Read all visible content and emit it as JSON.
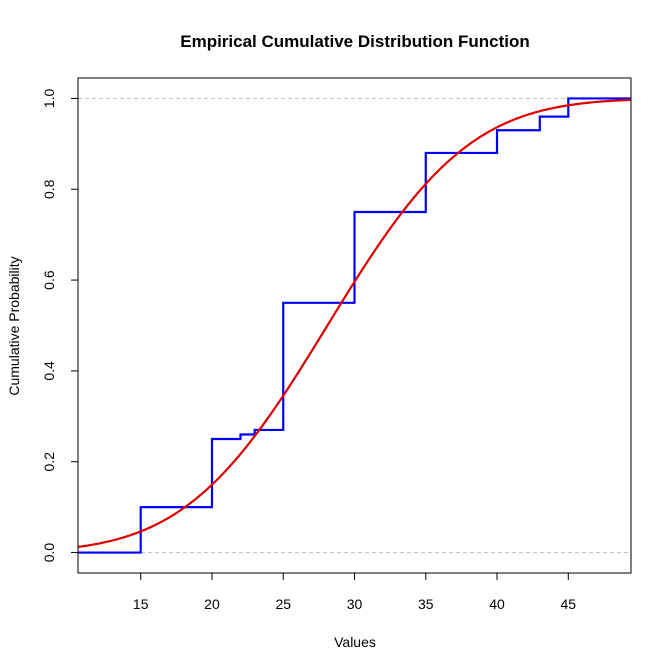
{
  "chart_data": {
    "type": "line",
    "title": "Empirical Cumulative Distribution Function",
    "xlabel": "Values",
    "ylabel": "Cumulative Probability",
    "xlim": [
      10.6,
      49.4
    ],
    "ylim": [
      -0.045,
      1.045
    ],
    "x_ticks": [
      15,
      20,
      25,
      30,
      35,
      40,
      45
    ],
    "y_ticks": [
      0.0,
      0.2,
      0.4,
      0.6,
      0.8,
      1.0
    ],
    "y_tick_labels": [
      "0.0",
      "0.2",
      "0.4",
      "0.6",
      "0.8",
      "1.0"
    ],
    "reference_lines": [
      0,
      1
    ],
    "reference_line_color": "#bebebe",
    "grid": false,
    "legend": "none",
    "series": [
      {
        "kind": "step",
        "color": "#0000ff",
        "x": [
          10.6,
          15,
          20,
          22,
          23,
          25,
          30,
          35,
          40,
          43,
          45,
          49.4
        ],
        "y": [
          0.0,
          0.1,
          0.25,
          0.26,
          0.27,
          0.55,
          0.75,
          0.88,
          0.93,
          0.96,
          1.0,
          1.0
        ]
      },
      {
        "kind": "normal-cdf",
        "color": "#dd0000",
        "mean": 28.1,
        "sd": 7.8,
        "x_range": [
          10.6,
          49.4
        ]
      }
    ]
  }
}
